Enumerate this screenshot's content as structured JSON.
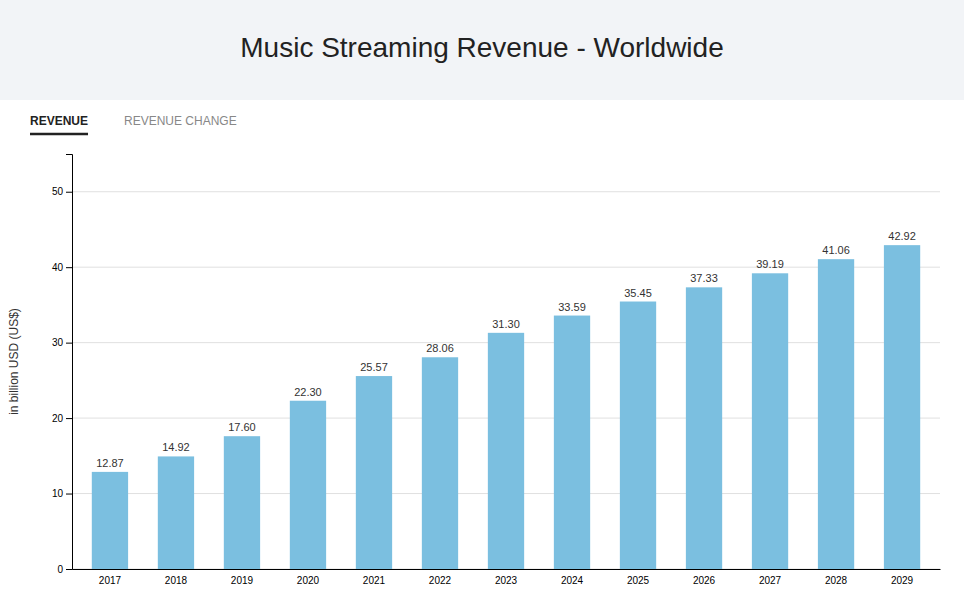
{
  "chart_data": {
    "type": "bar",
    "title": "Music Streaming Revenue - Worldwide",
    "annotations": [
      "REVENUE",
      "REVENUE CHANGE"
    ],
    "ylabel": "in billion USD (US$)",
    "categories": [
      "2017",
      "2018",
      "2019",
      "2020",
      "2021",
      "2022",
      "2023",
      "2024",
      "2025",
      "2026",
      "2027",
      "2028",
      "2029"
    ],
    "values": [
      12.87,
      14.92,
      17.6,
      22.3,
      25.57,
      28.06,
      31.3,
      33.59,
      35.45,
      37.33,
      39.19,
      41.06,
      42.92
    ],
    "value_labels": [
      "12.87",
      "14.92",
      "17.60",
      "22.30",
      "25.57",
      "28.06",
      "31.30",
      "33.59",
      "35.45",
      "37.33",
      "39.19",
      "41.06",
      "42.92"
    ],
    "data_labels": true,
    "color": "#7BBFE0",
    "ylim": [
      0,
      55
    ],
    "yticks": [
      0,
      10,
      20,
      30,
      40,
      50
    ],
    "grid": true
  }
}
